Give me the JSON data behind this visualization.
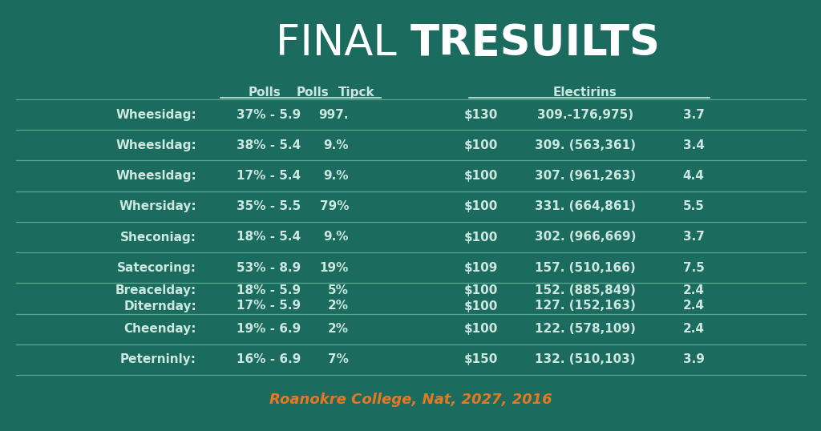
{
  "title_normal": "FINAL ",
  "title_bold": "TRESUILTS",
  "background_color": "#1b6b5f",
  "text_color": "#cce8e0",
  "orange_color": "#e87820",
  "line_color": "#5aaa92",
  "header_left_labels": [
    "Polls",
    "Polls",
    "Tipck"
  ],
  "header_right_label": "Electirins",
  "rows": [
    {
      "name": "Wheesidag:",
      "p1": "37% - 5.9",
      "p2": "997.",
      "e1": "$130",
      "e2": "309.-176,975)",
      "e3": "3.7",
      "paired": false
    },
    {
      "name": "Wheesldag:",
      "p1": "38% - 5.4",
      "p2": "9.%",
      "e1": "$100",
      "e2": "309. (563,361)",
      "e3": "3.4",
      "paired": false
    },
    {
      "name": "Wheesldag:",
      "p1": "17% - 5.4",
      "p2": "9.%",
      "e1": "$100",
      "e2": "307. (961,263)",
      "e3": "4.4",
      "paired": false
    },
    {
      "name": "Whersiday:",
      "p1": "35% - 5.5",
      "p2": "79%",
      "e1": "$100",
      "e2": "331. (664,861)",
      "e3": "5.5",
      "paired": false
    },
    {
      "name": "Sheconiag:",
      "p1": "18% - 5.4",
      "p2": "9.%",
      "e1": "$100",
      "e2": "302. (966,669)",
      "e3": "3.7",
      "paired": false
    },
    {
      "name": "Satecoring:",
      "p1": "53% - 8.9",
      "p2": "19%",
      "e1": "$109",
      "e2": "157. (510,166)",
      "e3": "7.5",
      "paired": false
    },
    {
      "name": "Breacelday:",
      "p1": "18% - 5.9",
      "p2": "5%",
      "e1": "$100",
      "e2": "152. (885,849)",
      "e3": "2.4",
      "paired": true,
      "pair_first": true
    },
    {
      "name": "Diternday:",
      "p1": "17% - 5.9",
      "p2": "2%",
      "e1": "$100",
      "e2": "127. (152,163)",
      "e3": "2.4",
      "paired": true,
      "pair_first": false
    },
    {
      "name": "Cheenday:",
      "p1": "19% - 6.9",
      "p2": "2%",
      "e1": "$100",
      "e2": "122. (578,109)",
      "e3": "2.4",
      "paired": false
    },
    {
      "name": "Peterninly:",
      "p1": "16% - 6.9",
      "p2": "7%",
      "e1": "$150",
      "e2": "132. (510,103)",
      "e3": "3.9",
      "paired": false
    }
  ],
  "footer": "Roanokre College, Nat, 2027, 2016",
  "title_fontsize": 38,
  "header_fontsize": 11,
  "row_fontsize": 11
}
